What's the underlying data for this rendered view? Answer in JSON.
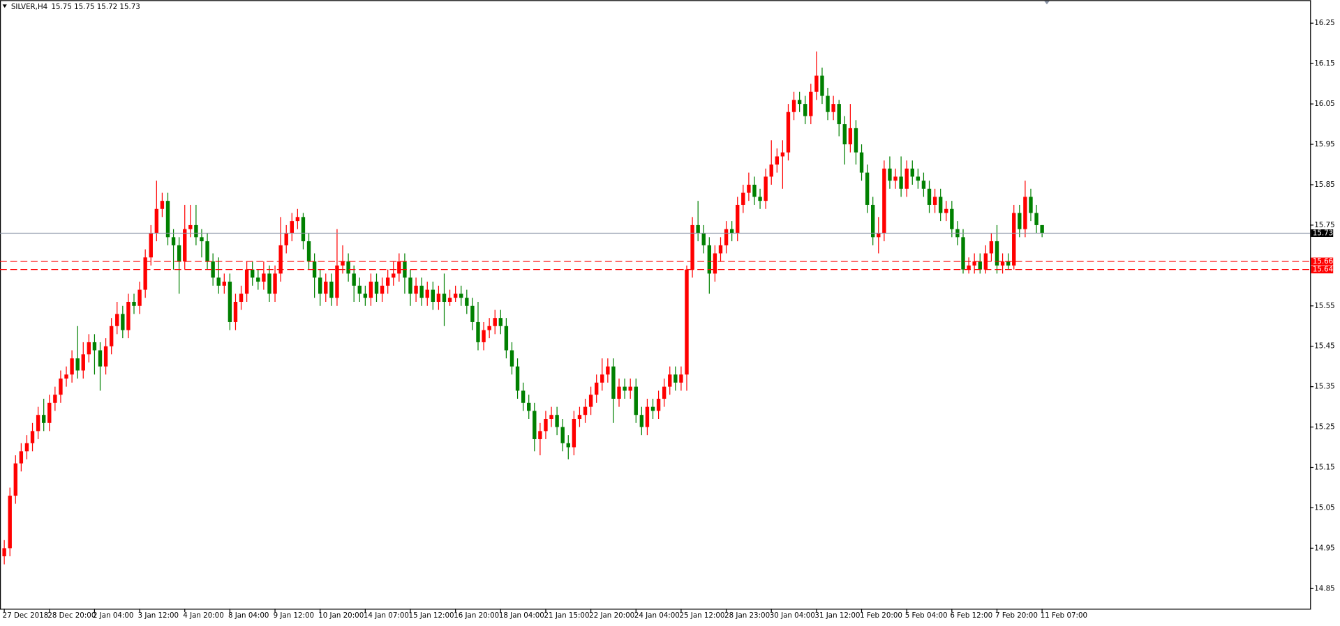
{
  "chart_data": {
    "type": "candlestick",
    "title": "SILVER,H4",
    "subtitle": "15.75 15.75 15.72 15.73",
    "up_color": "#ff0000",
    "down_color": "#008000",
    "ylim": [
      14.8,
      16.307
    ],
    "yticks": [
      14.85,
      14.95,
      15.05,
      15.15,
      15.25,
      15.35,
      15.45,
      15.55,
      15.75,
      15.85,
      15.95,
      16.05,
      16.15,
      16.25
    ],
    "current_price": 15.73,
    "current_price_color": "#8a94a6",
    "levels": [
      15.66,
      15.64
    ],
    "level_color": "#ff0000",
    "categories": [
      "27 Dec 2018",
      null,
      null,
      null,
      null,
      null,
      null,
      null,
      "28 Dec 20:00",
      null,
      null,
      null,
      null,
      null,
      null,
      null,
      "2 Jan 04:00",
      null,
      null,
      null,
      null,
      null,
      null,
      null,
      "3 Jan 12:00",
      null,
      null,
      null,
      null,
      null,
      null,
      null,
      "4 Jan 20:00",
      null,
      null,
      null,
      null,
      null,
      null,
      null,
      "8 Jan 04:00",
      null,
      null,
      null,
      null,
      null,
      null,
      null,
      "9 Jan 12:00",
      null,
      null,
      null,
      null,
      null,
      null,
      null,
      "10 Jan 20:00",
      null,
      null,
      null,
      null,
      null,
      null,
      null,
      "14 Jan 07:00",
      null,
      null,
      null,
      null,
      null,
      null,
      null,
      "15 Jan 12:00",
      null,
      null,
      null,
      null,
      null,
      null,
      null,
      "16 Jan 20:00",
      null,
      null,
      null,
      null,
      null,
      null,
      null,
      "18 Jan 04:00",
      null,
      null,
      null,
      null,
      null,
      null,
      null,
      "21 Jan 15:00",
      null,
      null,
      null,
      null,
      null,
      null,
      null,
      "22 Jan 20:00",
      null,
      null,
      null,
      null,
      null,
      null,
      null,
      "24 Jan 04:00",
      null,
      null,
      null,
      null,
      null,
      null,
      null,
      "25 Jan 12:00",
      null,
      null,
      null,
      null,
      null,
      null,
      null,
      "28 Jan 23:00",
      null,
      null,
      null,
      null,
      null,
      null,
      null,
      "30 Jan 04:00",
      null,
      null,
      null,
      null,
      null,
      null,
      null,
      "31 Jan 12:00",
      null,
      null,
      null,
      null,
      null,
      null,
      null,
      "1 Feb 20:00",
      null,
      null,
      null,
      null,
      null,
      null,
      null,
      "5 Feb 04:00",
      null,
      null,
      null,
      null,
      null,
      null,
      null,
      "6 Feb 12:00",
      null,
      null,
      null,
      null,
      null,
      null,
      null,
      "7 Feb 20:00",
      null,
      null,
      null,
      null,
      null,
      null,
      null,
      "11 Feb 07:00"
    ],
    "ohlc": [
      [
        14.93,
        14.97,
        14.91,
        14.95
      ],
      [
        14.95,
        15.1,
        14.93,
        15.08
      ],
      [
        15.08,
        15.18,
        15.06,
        15.16
      ],
      [
        15.16,
        15.21,
        15.14,
        15.19
      ],
      [
        15.19,
        15.23,
        15.17,
        15.21
      ],
      [
        15.21,
        15.26,
        15.19,
        15.24
      ],
      [
        15.24,
        15.3,
        15.22,
        15.28
      ],
      [
        15.28,
        15.32,
        15.24,
        15.26
      ],
      [
        15.26,
        15.33,
        15.24,
        15.31
      ],
      [
        15.31,
        15.35,
        15.29,
        15.33
      ],
      [
        15.33,
        15.39,
        15.31,
        15.37
      ],
      [
        15.37,
        15.4,
        15.35,
        15.38
      ],
      [
        15.38,
        15.44,
        15.36,
        15.42
      ],
      [
        15.42,
        15.5,
        15.37,
        15.39
      ],
      [
        15.39,
        15.46,
        15.37,
        15.43
      ],
      [
        15.43,
        15.48,
        15.41,
        15.46
      ],
      [
        15.46,
        15.48,
        15.38,
        15.44
      ],
      [
        15.44,
        15.46,
        15.34,
        15.4
      ],
      [
        15.4,
        15.47,
        15.38,
        15.45
      ],
      [
        15.45,
        15.52,
        15.43,
        15.5
      ],
      [
        15.5,
        15.56,
        15.48,
        15.53
      ],
      [
        15.53,
        15.55,
        15.47,
        15.49
      ],
      [
        15.49,
        15.58,
        15.47,
        15.56
      ],
      [
        15.56,
        15.58,
        15.53,
        15.55
      ],
      [
        15.55,
        15.61,
        15.53,
        15.59
      ],
      [
        15.59,
        15.69,
        15.57,
        15.67
      ],
      [
        15.67,
        15.75,
        15.65,
        15.73
      ],
      [
        15.73,
        15.86,
        15.71,
        15.79
      ],
      [
        15.79,
        15.83,
        15.77,
        15.81
      ],
      [
        15.81,
        15.83,
        15.7,
        15.72
      ],
      [
        15.72,
        15.74,
        15.64,
        15.7
      ],
      [
        15.7,
        15.72,
        15.58,
        15.66
      ],
      [
        15.66,
        15.8,
        15.64,
        15.74
      ],
      [
        15.74,
        15.8,
        15.72,
        15.75
      ],
      [
        15.75,
        15.8,
        15.7,
        15.72
      ],
      [
        15.72,
        15.74,
        15.67,
        15.71
      ],
      [
        15.71,
        15.73,
        15.64,
        15.66
      ],
      [
        15.66,
        15.68,
        15.6,
        15.62
      ],
      [
        15.62,
        15.67,
        15.58,
        15.6
      ],
      [
        15.6,
        15.63,
        15.58,
        15.61
      ],
      [
        15.61,
        15.63,
        15.49,
        15.51
      ],
      [
        15.51,
        15.58,
        15.49,
        15.56
      ],
      [
        15.56,
        15.6,
        15.54,
        15.58
      ],
      [
        15.58,
        15.66,
        15.56,
        15.64
      ],
      [
        15.64,
        15.66,
        15.6,
        15.62
      ],
      [
        15.62,
        15.64,
        15.59,
        15.61
      ],
      [
        15.61,
        15.66,
        15.59,
        15.63
      ],
      [
        15.63,
        15.65,
        15.56,
        15.58
      ],
      [
        15.58,
        15.65,
        15.56,
        15.63
      ],
      [
        15.63,
        15.77,
        15.61,
        15.7
      ],
      [
        15.7,
        15.75,
        15.68,
        15.73
      ],
      [
        15.73,
        15.78,
        15.71,
        15.76
      ],
      [
        15.76,
        15.79,
        15.74,
        15.77
      ],
      [
        15.77,
        15.78,
        15.69,
        15.71
      ],
      [
        15.71,
        15.73,
        15.64,
        15.66
      ],
      [
        15.66,
        15.68,
        15.57,
        15.62
      ],
      [
        15.62,
        15.64,
        15.55,
        15.58
      ],
      [
        15.58,
        15.63,
        15.56,
        15.61
      ],
      [
        15.61,
        15.63,
        15.55,
        15.57
      ],
      [
        15.57,
        15.74,
        15.55,
        15.65
      ],
      [
        15.65,
        15.7,
        15.63,
        15.66
      ],
      [
        15.66,
        15.68,
        15.61,
        15.63
      ],
      [
        15.63,
        15.65,
        15.56,
        15.6
      ],
      [
        15.6,
        15.62,
        15.56,
        15.58
      ],
      [
        15.58,
        15.6,
        15.55,
        15.57
      ],
      [
        15.57,
        15.63,
        15.55,
        15.61
      ],
      [
        15.61,
        15.63,
        15.56,
        15.58
      ],
      [
        15.58,
        15.62,
        15.56,
        15.6
      ],
      [
        15.6,
        15.64,
        15.58,
        15.62
      ],
      [
        15.62,
        15.66,
        15.6,
        15.63
      ],
      [
        15.63,
        15.68,
        15.61,
        15.66
      ],
      [
        15.66,
        15.68,
        15.58,
        15.62
      ],
      [
        15.62,
        15.64,
        15.55,
        15.58
      ],
      [
        15.58,
        15.62,
        15.56,
        15.6
      ],
      [
        15.6,
        15.62,
        15.55,
        15.57
      ],
      [
        15.57,
        15.61,
        15.55,
        15.59
      ],
      [
        15.59,
        15.61,
        15.54,
        15.56
      ],
      [
        15.56,
        15.6,
        15.54,
        15.58
      ],
      [
        15.58,
        15.63,
        15.5,
        15.56
      ],
      [
        15.56,
        15.59,
        15.55,
        15.57
      ],
      [
        15.57,
        15.6,
        15.56,
        15.58
      ],
      [
        15.58,
        15.6,
        15.55,
        15.57
      ],
      [
        15.57,
        15.59,
        15.53,
        15.55
      ],
      [
        15.55,
        15.57,
        15.49,
        15.51
      ],
      [
        15.51,
        15.56,
        15.44,
        15.46
      ],
      [
        15.46,
        15.51,
        15.44,
        15.49
      ],
      [
        15.49,
        15.52,
        15.47,
        15.5
      ],
      [
        15.5,
        15.54,
        15.48,
        15.52
      ],
      [
        15.52,
        15.54,
        15.48,
        15.5
      ],
      [
        15.5,
        15.52,
        15.42,
        15.44
      ],
      [
        15.44,
        15.46,
        15.38,
        15.4
      ],
      [
        15.4,
        15.42,
        15.32,
        15.34
      ],
      [
        15.34,
        15.36,
        15.29,
        15.31
      ],
      [
        15.31,
        15.33,
        15.27,
        15.29
      ],
      [
        15.29,
        15.31,
        15.19,
        15.22
      ],
      [
        15.22,
        15.26,
        15.18,
        15.24
      ],
      [
        15.24,
        15.29,
        15.22,
        15.27
      ],
      [
        15.27,
        15.3,
        15.25,
        15.28
      ],
      [
        15.28,
        15.3,
        15.23,
        15.25
      ],
      [
        15.25,
        15.27,
        15.19,
        15.21
      ],
      [
        15.21,
        15.23,
        15.17,
        15.2
      ],
      [
        15.2,
        15.29,
        15.18,
        15.27
      ],
      [
        15.27,
        15.3,
        15.25,
        15.28
      ],
      [
        15.28,
        15.32,
        15.26,
        15.3
      ],
      [
        15.3,
        15.35,
        15.28,
        15.33
      ],
      [
        15.33,
        15.38,
        15.31,
        15.36
      ],
      [
        15.36,
        15.42,
        15.34,
        15.38
      ],
      [
        15.38,
        15.42,
        15.36,
        15.4
      ],
      [
        15.4,
        15.42,
        15.26,
        15.32
      ],
      [
        15.32,
        15.37,
        15.3,
        15.35
      ],
      [
        15.35,
        15.37,
        15.32,
        15.34
      ],
      [
        15.34,
        15.37,
        15.32,
        15.35
      ],
      [
        15.35,
        15.37,
        15.26,
        15.28
      ],
      [
        15.28,
        15.3,
        15.23,
        15.25
      ],
      [
        15.25,
        15.32,
        15.23,
        15.3
      ],
      [
        15.3,
        15.32,
        15.27,
        15.29
      ],
      [
        15.29,
        15.34,
        15.27,
        15.32
      ],
      [
        15.32,
        15.37,
        15.3,
        15.35
      ],
      [
        15.35,
        15.4,
        15.33,
        15.38
      ],
      [
        15.38,
        15.4,
        15.34,
        15.36
      ],
      [
        15.36,
        15.4,
        15.34,
        15.38
      ],
      [
        15.38,
        15.65,
        15.34,
        15.64
      ],
      [
        15.64,
        15.77,
        15.62,
        15.75
      ],
      [
        15.75,
        15.81,
        15.71,
        15.73
      ],
      [
        15.73,
        15.75,
        15.68,
        15.7
      ],
      [
        15.7,
        15.72,
        15.58,
        15.63
      ],
      [
        15.63,
        15.7,
        15.61,
        15.68
      ],
      [
        15.68,
        15.72,
        15.66,
        15.7
      ],
      [
        15.7,
        15.76,
        15.68,
        15.74
      ],
      [
        15.74,
        15.76,
        15.71,
        15.73
      ],
      [
        15.73,
        15.82,
        15.71,
        15.8
      ],
      [
        15.8,
        15.85,
        15.78,
        15.83
      ],
      [
        15.83,
        15.88,
        15.81,
        15.85
      ],
      [
        15.85,
        15.87,
        15.8,
        15.82
      ],
      [
        15.82,
        15.84,
        15.79,
        15.81
      ],
      [
        15.81,
        15.89,
        15.79,
        15.87
      ],
      [
        15.87,
        15.96,
        15.85,
        15.9
      ],
      [
        15.9,
        15.94,
        15.88,
        15.92
      ],
      [
        15.92,
        15.96,
        15.84,
        15.93
      ],
      [
        15.93,
        16.05,
        15.91,
        16.03
      ],
      [
        16.03,
        16.08,
        16.01,
        16.06
      ],
      [
        16.06,
        16.08,
        16.03,
        16.05
      ],
      [
        16.05,
        16.07,
        16.0,
        16.02
      ],
      [
        16.02,
        16.1,
        16.0,
        16.08
      ],
      [
        16.08,
        16.18,
        16.06,
        16.12
      ],
      [
        16.12,
        16.14,
        16.05,
        16.07
      ],
      [
        16.07,
        16.09,
        16.01,
        16.03
      ],
      [
        16.03,
        16.07,
        16.01,
        16.05
      ],
      [
        16.05,
        16.06,
        15.97,
        16.0
      ],
      [
        16.0,
        16.02,
        15.9,
        15.95
      ],
      [
        15.95,
        16.05,
        15.93,
        15.99
      ],
      [
        15.99,
        16.01,
        15.9,
        15.93
      ],
      [
        15.93,
        15.95,
        15.86,
        15.88
      ],
      [
        15.88,
        15.9,
        15.78,
        15.8
      ],
      [
        15.8,
        15.82,
        15.7,
        15.72
      ],
      [
        15.72,
        15.77,
        15.68,
        15.73
      ],
      [
        15.73,
        15.91,
        15.71,
        15.89
      ],
      [
        15.89,
        15.92,
        15.84,
        15.86
      ],
      [
        15.86,
        15.89,
        15.84,
        15.87
      ],
      [
        15.87,
        15.92,
        15.82,
        15.84
      ],
      [
        15.84,
        15.91,
        15.82,
        15.89
      ],
      [
        15.89,
        15.91,
        15.85,
        15.87
      ],
      [
        15.87,
        15.89,
        15.84,
        15.86
      ],
      [
        15.86,
        15.88,
        15.82,
        15.84
      ],
      [
        15.84,
        15.86,
        15.78,
        15.8
      ],
      [
        15.8,
        15.84,
        15.78,
        15.82
      ],
      [
        15.82,
        15.84,
        15.76,
        15.78
      ],
      [
        15.78,
        15.81,
        15.76,
        15.79
      ],
      [
        15.79,
        15.81,
        15.72,
        15.74
      ],
      [
        15.74,
        15.76,
        15.7,
        15.72
      ],
      [
        15.72,
        15.74,
        15.63,
        15.64
      ],
      [
        15.64,
        15.67,
        15.63,
        15.65
      ],
      [
        15.65,
        15.68,
        15.63,
        15.66
      ],
      [
        15.66,
        15.68,
        15.63,
        15.64
      ],
      [
        15.64,
        15.7,
        15.63,
        15.68
      ],
      [
        15.68,
        15.73,
        15.66,
        15.71
      ],
      [
        15.71,
        15.75,
        15.63,
        15.65
      ],
      [
        15.65,
        15.68,
        15.63,
        15.66
      ],
      [
        15.66,
        15.68,
        15.64,
        15.65
      ],
      [
        15.65,
        15.8,
        15.64,
        15.78
      ],
      [
        15.78,
        15.8,
        15.72,
        15.74
      ],
      [
        15.74,
        15.86,
        15.72,
        15.82
      ],
      [
        15.82,
        15.84,
        15.76,
        15.78
      ],
      [
        15.78,
        15.8,
        15.73,
        15.75
      ],
      [
        15.75,
        15.75,
        15.72,
        15.73
      ]
    ]
  }
}
